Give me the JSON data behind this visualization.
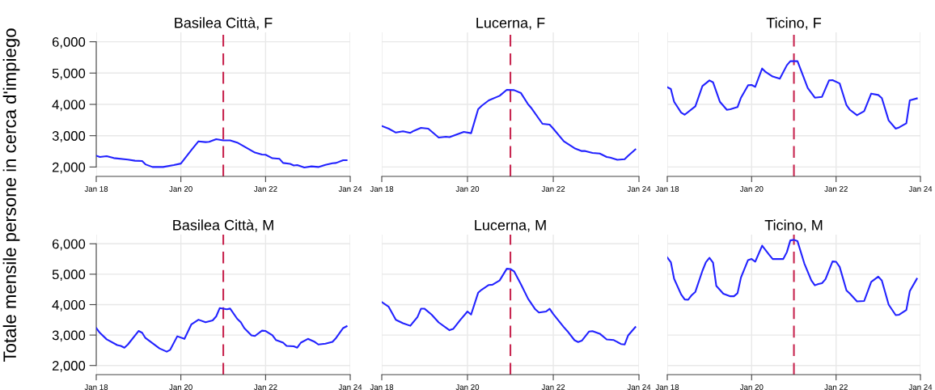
{
  "chart_data": [
    {
      "type": "line",
      "title": "Basilea Città, F",
      "ylabel": "Totale mensile persone in cerca d'impiego",
      "grid": true,
      "line_style": "solid",
      "xlim": [
        "2018-01",
        "2024-01"
      ],
      "ylim": [
        1700,
        6300
      ],
      "xticks": [
        {
          "value": "2018-01",
          "label": "Jan 18"
        },
        {
          "value": "2020-01",
          "label": "Jan 20"
        },
        {
          "value": "2022-01",
          "label": "Jan 22"
        },
        {
          "value": "2024-01",
          "label": "Jan 24"
        }
      ],
      "yticks": [
        {
          "value": 2000,
          "label": "2,000"
        },
        {
          "value": 3000,
          "label": "3,000"
        },
        {
          "value": 4000,
          "label": "4,000"
        },
        {
          "value": 5000,
          "label": "5,000"
        },
        {
          "value": 6000,
          "label": "6,000"
        }
      ],
      "ref_lines": [
        {
          "axis": "x",
          "value": "2021-01",
          "color": "#c8254f",
          "line_style": "dashed"
        }
      ],
      "series": [
        {
          "color": "#2222ff",
          "x": [
            "2018-01",
            "2018-02",
            "2018-04",
            "2018-06",
            "2018-10",
            "2018-12",
            "2019-02",
            "2019-03",
            "2019-05",
            "2019-08",
            "2019-11",
            "2020-01",
            "2020-04",
            "2020-06",
            "2020-08",
            "2020-09",
            "2020-11",
            "2021-01",
            "2021-03",
            "2021-05",
            "2021-08",
            "2021-10",
            "2021-12",
            "2022-01",
            "2022-03",
            "2022-05",
            "2022-06",
            "2022-08",
            "2022-09",
            "2022-10",
            "2022-12",
            "2023-02",
            "2023-04",
            "2023-06",
            "2023-08",
            "2023-09",
            "2023-11",
            "2023-12"
          ],
          "values": [
            2360,
            2320,
            2345,
            2285,
            2235,
            2200,
            2190,
            2085,
            2000,
            2000,
            2060,
            2110,
            2545,
            2820,
            2795,
            2805,
            2890,
            2850,
            2850,
            2780,
            2590,
            2460,
            2400,
            2390,
            2280,
            2260,
            2130,
            2100,
            2050,
            2060,
            1985,
            2020,
            2000,
            2070,
            2120,
            2130,
            2215,
            2215
          ]
        }
      ]
    },
    {
      "type": "line",
      "title": "Lucerna, F",
      "grid": true,
      "line_style": "solid",
      "tick_labels": "x",
      "xlim": [
        "2018-01",
        "2024-01"
      ],
      "ylim": [
        1700,
        6300
      ],
      "xticks": [
        {
          "value": "2018-01",
          "label": "Jan 18"
        },
        {
          "value": "2020-01",
          "label": "Jan 20"
        },
        {
          "value": "2022-01",
          "label": "Jan 22"
        },
        {
          "value": "2024-01",
          "label": "Jan 24"
        }
      ],
      "yticks": [
        2000,
        3000,
        4000,
        5000,
        6000
      ],
      "ref_lines": [
        {
          "axis": "x",
          "value": "2021-01",
          "color": "#c8254f",
          "line_style": "dashed"
        }
      ],
      "series": [
        {
          "color": "#2222ff",
          "x": [
            "2018-01",
            "2018-03",
            "2018-05",
            "2018-07",
            "2018-09",
            "2018-10",
            "2018-12",
            "2019-02",
            "2019-05",
            "2019-07",
            "2019-08",
            "2019-12",
            "2020-02",
            "2020-04",
            "2020-05",
            "2020-07",
            "2020-10",
            "2020-12",
            "2021-02",
            "2021-04",
            "2021-06",
            "2021-07",
            "2021-10",
            "2021-12",
            "2022-01",
            "2022-04",
            "2022-07",
            "2022-09",
            "2022-10",
            "2022-12",
            "2023-02",
            "2023-04",
            "2023-05",
            "2023-07",
            "2023-09",
            "2023-10",
            "2023-12"
          ],
          "values": [
            3310,
            3225,
            3100,
            3140,
            3090,
            3155,
            3250,
            3225,
            2940,
            2965,
            2955,
            3120,
            3080,
            3845,
            3955,
            4130,
            4275,
            4465,
            4455,
            4360,
            4000,
            3870,
            3380,
            3355,
            3225,
            2820,
            2600,
            2510,
            2510,
            2450,
            2430,
            2320,
            2300,
            2230,
            2250,
            2360,
            2560
          ]
        }
      ]
    },
    {
      "type": "line",
      "title": "Ticino, F",
      "grid": true,
      "line_style": "solid",
      "tick_labels": "x",
      "xlim": [
        "2018-01",
        "2024-01"
      ],
      "ylim": [
        1700,
        6300
      ],
      "xticks": [
        {
          "value": "2018-01",
          "label": "Jan 18"
        },
        {
          "value": "2020-01",
          "label": "Jan 20"
        },
        {
          "value": "2022-01",
          "label": "Jan 22"
        },
        {
          "value": "2024-01",
          "label": "Jan 24"
        }
      ],
      "yticks": [
        2000,
        3000,
        4000,
        5000,
        6000
      ],
      "ref_lines": [
        {
          "axis": "x",
          "value": "2021-01",
          "color": "#c8254f",
          "line_style": "dashed"
        }
      ],
      "series": [
        {
          "color": "#2222ff",
          "x": [
            "2018-01",
            "2018-02",
            "2018-03",
            "2018-05",
            "2018-06",
            "2018-09",
            "2018-11",
            "2019-01",
            "2019-02",
            "2019-04",
            "2019-06",
            "2019-07",
            "2019-09",
            "2019-10",
            "2019-12",
            "2020-01",
            "2020-02",
            "2020-04",
            "2020-05",
            "2020-07",
            "2020-09",
            "2020-11",
            "2020-12",
            "2021-02",
            "2021-05",
            "2021-07",
            "2021-09",
            "2021-11",
            "2021-12",
            "2022-02",
            "2022-04",
            "2022-05",
            "2022-07",
            "2022-09",
            "2022-11",
            "2023-01",
            "2023-02",
            "2023-04",
            "2023-06",
            "2023-07",
            "2023-09",
            "2023-10",
            "2023-12"
          ],
          "values": [
            4550,
            4490,
            4085,
            3740,
            3670,
            3940,
            4585,
            4765,
            4705,
            4085,
            3825,
            3845,
            3915,
            4215,
            4610,
            4620,
            4560,
            5145,
            5035,
            4890,
            4820,
            5250,
            5380,
            5380,
            4520,
            4215,
            4240,
            4765,
            4775,
            4670,
            3975,
            3825,
            3655,
            3785,
            4345,
            4300,
            4200,
            3485,
            3225,
            3265,
            3395,
            4130,
            4190
          ]
        }
      ]
    },
    {
      "type": "line",
      "title": "Basilea Città, M",
      "grid": true,
      "line_style": "solid",
      "xlim": [
        "2018-01",
        "2024-01"
      ],
      "ylim": [
        1700,
        6300
      ],
      "xticks": [
        {
          "value": "2018-01",
          "label": "Jan 18"
        },
        {
          "value": "2020-01",
          "label": "Jan 20"
        },
        {
          "value": "2022-01",
          "label": "Jan 22"
        },
        {
          "value": "2024-01",
          "label": "Jan 24"
        }
      ],
      "yticks": [
        {
          "value": 2000,
          "label": "2,000"
        },
        {
          "value": 3000,
          "label": "3,000"
        },
        {
          "value": 4000,
          "label": "4,000"
        },
        {
          "value": 5000,
          "label": "5,000"
        },
        {
          "value": 6000,
          "label": "6,000"
        }
      ],
      "ref_lines": [
        {
          "axis": "x",
          "value": "2021-01",
          "color": "#c8254f",
          "line_style": "dashed"
        }
      ],
      "series": [
        {
          "color": "#2222ff",
          "x": [
            "2018-01",
            "2018-02",
            "2018-04",
            "2018-07",
            "2018-08",
            "2018-09",
            "2018-10",
            "2019-01",
            "2019-02",
            "2019-03",
            "2019-07",
            "2019-09",
            "2019-10",
            "2019-12",
            "2020-02",
            "2020-04",
            "2020-06",
            "2020-08",
            "2020-10",
            "2020-11",
            "2020-12",
            "2021-02",
            "2021-03",
            "2021-05",
            "2021-06",
            "2021-07",
            "2021-09",
            "2021-10",
            "2021-12",
            "2022-01",
            "2022-03",
            "2022-04",
            "2022-06",
            "2022-07",
            "2022-09",
            "2022-10",
            "2022-11",
            "2023-01",
            "2023-03",
            "2023-04",
            "2023-06",
            "2023-08",
            "2023-09",
            "2023-11",
            "2023-12"
          ],
          "values": [
            3230,
            3075,
            2860,
            2670,
            2645,
            2585,
            2690,
            3135,
            3075,
            2905,
            2560,
            2455,
            2515,
            2960,
            2875,
            3355,
            3505,
            3420,
            3480,
            3615,
            3885,
            3845,
            3870,
            3535,
            3420,
            3230,
            2990,
            2970,
            3145,
            3135,
            2990,
            2835,
            2750,
            2645,
            2630,
            2585,
            2750,
            2875,
            2775,
            2690,
            2715,
            2775,
            2905,
            3230,
            3290
          ]
        }
      ]
    },
    {
      "type": "line",
      "title": "Lucerna, M",
      "grid": true,
      "line_style": "solid",
      "tick_labels": "x",
      "xlim": [
        "2018-01",
        "2024-01"
      ],
      "ylim": [
        1700,
        6300
      ],
      "xticks": [
        {
          "value": "2018-01",
          "label": "Jan 18"
        },
        {
          "value": "2020-01",
          "label": "Jan 20"
        },
        {
          "value": "2022-01",
          "label": "Jan 22"
        },
        {
          "value": "2024-01",
          "label": "Jan 24"
        }
      ],
      "yticks": [
        2000,
        3000,
        4000,
        5000,
        6000
      ],
      "ref_lines": [
        {
          "axis": "x",
          "value": "2021-01",
          "color": "#c8254f",
          "line_style": "dashed"
        }
      ],
      "series": [
        {
          "color": "#2222ff",
          "x": [
            "2018-01",
            "2018-03",
            "2018-05",
            "2018-07",
            "2018-09",
            "2018-11",
            "2018-12",
            "2019-01",
            "2019-03",
            "2019-05",
            "2019-08",
            "2019-09",
            "2019-11",
            "2020-01",
            "2020-02",
            "2020-04",
            "2020-05",
            "2020-07",
            "2020-08",
            "2020-10",
            "2020-12",
            "2021-01",
            "2021-02",
            "2021-04",
            "2021-06",
            "2021-08",
            "2021-09",
            "2021-11",
            "2021-12",
            "2022-01",
            "2022-04",
            "2022-05",
            "2022-07",
            "2022-08",
            "2022-09",
            "2022-11",
            "2022-12",
            "2023-02",
            "2023-04",
            "2023-06",
            "2023-08",
            "2023-09",
            "2023-10",
            "2023-12"
          ],
          "values": [
            4085,
            3930,
            3500,
            3390,
            3305,
            3590,
            3865,
            3865,
            3675,
            3415,
            3160,
            3200,
            3500,
            3775,
            3675,
            4390,
            4490,
            4645,
            4655,
            4795,
            5180,
            5170,
            5095,
            4665,
            4190,
            3845,
            3740,
            3775,
            3865,
            3690,
            3260,
            3130,
            2830,
            2770,
            2815,
            3115,
            3130,
            3045,
            2855,
            2835,
            2705,
            2690,
            2990,
            3260
          ]
        }
      ]
    },
    {
      "type": "line",
      "title": "Ticino, M",
      "grid": true,
      "line_style": "solid",
      "tick_labels": "x",
      "xlim": [
        "2018-01",
        "2024-01"
      ],
      "ylim": [
        1700,
        6300
      ],
      "xticks": [
        {
          "value": "2018-01",
          "label": "Jan 18"
        },
        {
          "value": "2020-01",
          "label": "Jan 20"
        },
        {
          "value": "2022-01",
          "label": "Jan 22"
        },
        {
          "value": "2024-01",
          "label": "Jan 24"
        }
      ],
      "yticks": [
        2000,
        3000,
        4000,
        5000,
        6000
      ],
      "ref_lines": [
        {
          "axis": "x",
          "value": "2021-01",
          "color": "#c8254f",
          "line_style": "dashed"
        }
      ],
      "series": [
        {
          "color": "#2222ff",
          "x": [
            "2018-01",
            "2018-02",
            "2018-03",
            "2018-05",
            "2018-06",
            "2018-07",
            "2018-08",
            "2018-09",
            "2018-11",
            "2018-12",
            "2019-01",
            "2019-02",
            "2019-03",
            "2019-05",
            "2019-07",
            "2019-08",
            "2019-09",
            "2019-10",
            "2019-12",
            "2020-01",
            "2020-02",
            "2020-04",
            "2020-06",
            "2020-07",
            "2020-10",
            "2020-11",
            "2020-12",
            "2021-01",
            "2021-02",
            "2021-04",
            "2021-06",
            "2021-07",
            "2021-08",
            "2021-09",
            "2021-10",
            "2021-12",
            "2022-01",
            "2022-02",
            "2022-04",
            "2022-05",
            "2022-07",
            "2022-09",
            "2022-11",
            "2023-01",
            "2023-02",
            "2023-04",
            "2023-06",
            "2023-07",
            "2023-09",
            "2023-10",
            "2023-12"
          ],
          "values": [
            5550,
            5395,
            4850,
            4335,
            4170,
            4160,
            4315,
            4420,
            5110,
            5395,
            5540,
            5380,
            4620,
            4360,
            4275,
            4275,
            4375,
            4895,
            5465,
            5500,
            5410,
            5940,
            5640,
            5500,
            5500,
            5725,
            6110,
            6130,
            6085,
            5355,
            4795,
            4635,
            4680,
            4705,
            4835,
            5420,
            5410,
            5240,
            4465,
            4360,
            4105,
            4120,
            4750,
            4920,
            4790,
            4000,
            3655,
            3670,
            3825,
            4445,
            4850
          ]
        }
      ]
    }
  ]
}
